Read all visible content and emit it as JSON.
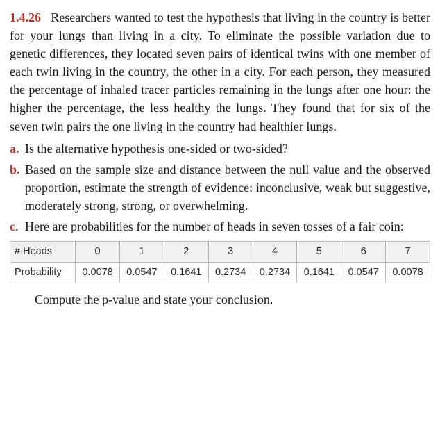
{
  "problem_number": "1.4.26",
  "intro": "Researchers wanted to test the hypothesis that living in the country is better for your lungs than living in a city. To eliminate the possible variation due to genetic differences, they located seven pairs of identical twins with one member of each twin living in the country, the other in a city. For each person, they measured the percentage of inhaled tracer particles remaining in the lungs after one hour: the higher the percentage, the less healthy the lungs. They found that for six of the seven twin pairs the one living in the country had healthier lungs.",
  "parts": {
    "a": {
      "letter": "a.",
      "text": "Is the alternative hypothesis one-sided or two-sided?"
    },
    "b": {
      "letter": "b.",
      "text": "Based on the sample size and distance between the null value and the observed proportion, estimate the strength of evidence: inconclusive, weak but suggestive, moderately strong, strong, or overwhelming."
    },
    "c": {
      "letter": "c.",
      "text": "Here are probabilities for the number of heads in seven tosses of a fair coin:"
    }
  },
  "table": {
    "type": "table",
    "row_labels": [
      "# Heads",
      "Probability"
    ],
    "columns": [
      "0",
      "1",
      "2",
      "3",
      "4",
      "5",
      "6",
      "7"
    ],
    "values": [
      "0.0078",
      "0.0547",
      "0.1641",
      "0.2734",
      "0.2734",
      "0.1641",
      "0.0547",
      "0.0078"
    ],
    "header_bg": "#f0f0f0",
    "border_color": "#b8b8b8",
    "font_family": "Arial",
    "font_size_pt": 11
  },
  "accent_color": "#c03020",
  "conclusion": "Compute the p-value and state your conclusion."
}
